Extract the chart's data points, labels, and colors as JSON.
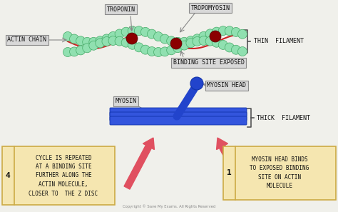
{
  "bg_color": "#f0f0eb",
  "actin_chain_color": "#90e0b0",
  "troponin_color": "#8b0000",
  "tropomyosin_color": "#cc2222",
  "myosin_head_color": "#2244cc",
  "thick_filament_color": "#3355dd",
  "label_box_color": "#d8d8d8",
  "label_box_edge": "#888888",
  "note_box_color": "#f5e6b0",
  "note_box_edge": "#ccaa44",
  "arrow_color": "#e05060",
  "text_color": "#111111",
  "bracket_color": "#555555",
  "labels": {
    "troponin": "TROPONIN",
    "tropomyosin": "TROPOMYOSIN",
    "actin_chain": "ACTIN CHAIN",
    "thin_filament": "THIN  FILAMENT",
    "binding_site": "BINDING SITE EXPOSED",
    "myosin_head": "MYOSIN HEAD",
    "myosin": "MYOSIN",
    "thick_filament": "THICK  FILAMENT",
    "box4": "CYCLE IS REPEATED\nAT A BINDING SITE\nFURTHER ALONG THE\nACTIN MOLECULE,\nCLOSER TO  THE Z DISC",
    "box4_num": "4",
    "box1": "MYOSIN HEAD BINDS\nTO EXPOSED BINDING\nSITE ON ACTIN\nMOLECULE",
    "box1_num": "1",
    "copyright": "Copyright © Save My Exams. All Rights Reserved"
  }
}
